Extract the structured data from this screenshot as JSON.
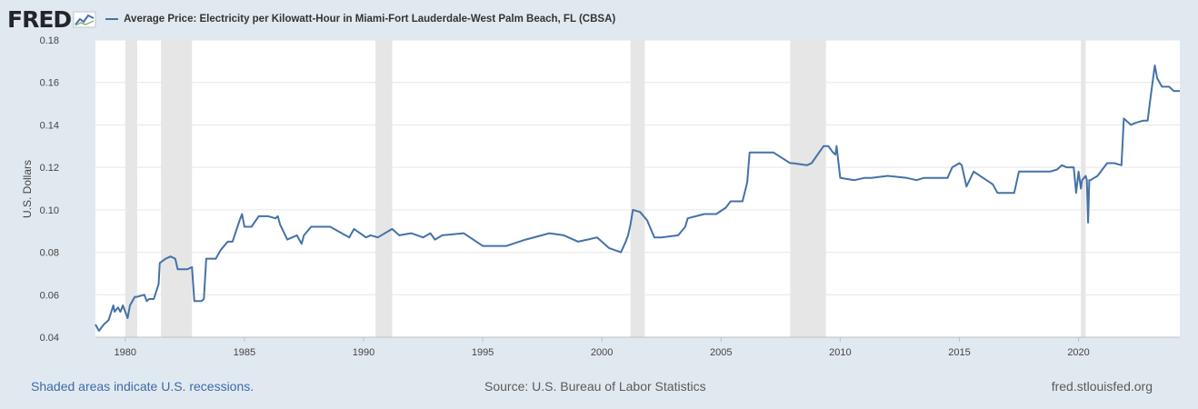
{
  "brand": {
    "name": "FRED"
  },
  "chart_data": {
    "type": "line",
    "title": "",
    "ylabel": "U.S. Dollars",
    "xlabel": "",
    "xlim": [
      1978.75,
      2024.25
    ],
    "ylim": [
      0.04,
      0.18
    ],
    "yticks": [
      0.04,
      0.06,
      0.08,
      0.1,
      0.12,
      0.14,
      0.16,
      0.18
    ],
    "ytick_labels": [
      "0.04",
      "0.06",
      "0.08",
      "0.10",
      "0.12",
      "0.14",
      "0.16",
      "0.18"
    ],
    "xticks": [
      1980,
      1985,
      1990,
      1995,
      2000,
      2005,
      2010,
      2015,
      2020
    ],
    "xtick_labels": [
      "1980",
      "1985",
      "1990",
      "1995",
      "2000",
      "2005",
      "2010",
      "2015",
      "2020"
    ],
    "grid": true,
    "legend_placement": "top-left",
    "series": [
      {
        "name": "Average Price: Electricity per Kilowatt-Hour in Miami-Fort Lauderdale-West Palm Beach, FL (CBSA)",
        "color": "#4572a7",
        "x": [
          1978.75,
          1978.9,
          1979.1,
          1979.3,
          1979.5,
          1979.55,
          1979.7,
          1979.8,
          1979.9,
          1980.0,
          1980.1,
          1980.2,
          1980.4,
          1980.5,
          1980.8,
          1980.9,
          1981.0,
          1981.2,
          1981.4,
          1981.45,
          1981.7,
          1981.9,
          1982.1,
          1982.2,
          1982.6,
          1982.8,
          1982.9,
          1983.2,
          1983.3,
          1983.4,
          1983.8,
          1984.0,
          1984.3,
          1984.5,
          1984.8,
          1984.9,
          1985.0,
          1985.3,
          1985.6,
          1986.0,
          1986.3,
          1986.4,
          1986.5,
          1986.8,
          1987.2,
          1987.4,
          1987.5,
          1987.8,
          1988.2,
          1988.4,
          1988.6,
          1989.4,
          1989.6,
          1990.1,
          1990.3,
          1990.6,
          1991.2,
          1991.5,
          1992.0,
          1992.5,
          1992.8,
          1993.0,
          1993.3,
          1994.2,
          1994.6,
          1995.0,
          1995.4,
          1996.0,
          1996.8,
          1997.8,
          1998.4,
          1999.0,
          1999.4,
          1999.8,
          2000.3,
          2000.8,
          2001.0,
          2001.1,
          2001.2,
          2001.3,
          2001.6,
          2001.9,
          2002.2,
          2002.4,
          2002.5,
          2003.2,
          2003.5,
          2003.6,
          2004.3,
          2004.5,
          2004.8,
          2005.2,
          2005.4,
          2005.9,
          2006.1,
          2006.2,
          2007.2,
          2007.9,
          2008.0,
          2008.6,
          2008.8,
          2009.3,
          2009.5,
          2009.7,
          2009.8,
          2009.85,
          2010.0,
          2010.6,
          2011.0,
          2011.3,
          2012.0,
          2012.8,
          2013.2,
          2013.5,
          2014.1,
          2014.5,
          2014.7,
          2015.0,
          2015.1,
          2015.3,
          2015.6,
          2016.0,
          2016.4,
          2016.6,
          2017.3,
          2017.5,
          2018.4,
          2018.8,
          2019.1,
          2019.3,
          2019.5,
          2019.8,
          2019.9,
          2020.0,
          2020.1,
          2020.15,
          2020.3,
          2020.35,
          2020.4,
          2020.45,
          2020.5,
          2020.65,
          2020.8,
          2021.2,
          2021.5,
          2021.8,
          2021.9,
          2022.2,
          2022.4,
          2022.7,
          2022.9,
          2023.0,
          2023.2,
          2023.3,
          2023.5,
          2023.8,
          2024.0,
          2024.25
        ],
        "values": [
          0.046,
          0.043,
          0.046,
          0.048,
          0.055,
          0.052,
          0.054,
          0.052,
          0.055,
          0.052,
          0.049,
          0.055,
          0.059,
          0.059,
          0.06,
          0.057,
          0.058,
          0.058,
          0.065,
          0.075,
          0.077,
          0.078,
          0.077,
          0.072,
          0.072,
          0.073,
          0.057,
          0.057,
          0.058,
          0.077,
          0.077,
          0.081,
          0.085,
          0.085,
          0.095,
          0.098,
          0.092,
          0.092,
          0.097,
          0.097,
          0.096,
          0.097,
          0.093,
          0.086,
          0.088,
          0.084,
          0.088,
          0.092,
          0.092,
          0.092,
          0.092,
          0.087,
          0.091,
          0.087,
          0.088,
          0.087,
          0.091,
          0.088,
          0.089,
          0.087,
          0.089,
          0.086,
          0.088,
          0.089,
          0.086,
          0.083,
          0.083,
          0.083,
          0.086,
          0.089,
          0.088,
          0.085,
          0.086,
          0.087,
          0.082,
          0.08,
          0.085,
          0.088,
          0.093,
          0.1,
          0.099,
          0.095,
          0.087,
          0.087,
          0.087,
          0.088,
          0.092,
          0.096,
          0.098,
          0.098,
          0.098,
          0.101,
          0.104,
          0.104,
          0.113,
          0.127,
          0.127,
          0.122,
          0.122,
          0.121,
          0.122,
          0.13,
          0.13,
          0.127,
          0.126,
          0.13,
          0.115,
          0.114,
          0.115,
          0.115,
          0.116,
          0.115,
          0.114,
          0.115,
          0.115,
          0.115,
          0.12,
          0.122,
          0.121,
          0.111,
          0.118,
          0.115,
          0.112,
          0.108,
          0.108,
          0.118,
          0.118,
          0.118,
          0.119,
          0.121,
          0.12,
          0.12,
          0.108,
          0.118,
          0.11,
          0.114,
          0.116,
          0.114,
          0.094,
          0.114,
          0.114,
          0.115,
          0.116,
          0.122,
          0.122,
          0.121,
          0.143,
          0.14,
          0.141,
          0.142,
          0.142,
          0.151,
          0.168,
          0.162,
          0.158,
          0.158,
          0.156,
          0.156
        ]
      }
    ],
    "recessions": [
      [
        1980.0,
        1980.5
      ],
      [
        1981.5,
        1982.8
      ],
      [
        1990.5,
        1991.2
      ],
      [
        2001.2,
        2001.8
      ],
      [
        2007.9,
        2009.4
      ],
      [
        2020.1,
        2020.3
      ]
    ],
    "colors": {
      "plot_background": "#ffffff",
      "page_background": "#e1e9f0",
      "recession_shade": "#e6e6e6",
      "grid": "#e6e6e6",
      "axis_text": "#444444"
    }
  },
  "footer": {
    "recession_note": "Shaded areas indicate U.S. recessions.",
    "source": "Source: U.S. Bureau of Labor Statistics",
    "site": "fred.stlouisfed.org"
  }
}
